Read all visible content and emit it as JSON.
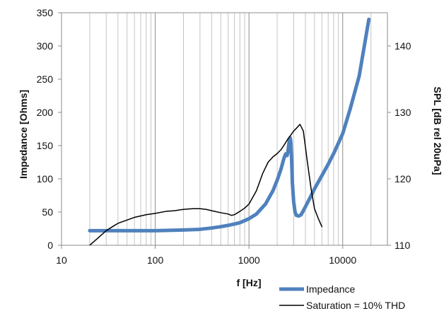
{
  "chart_data": {
    "type": "line",
    "xlabel": "f [Hz]",
    "ylabel": "Impedance [Ohms]",
    "y2label": "SPL [dB rel 20uPa]",
    "x_scale": "log",
    "xlim": [
      10,
      30000
    ],
    "ylim": [
      0,
      350
    ],
    "y2lim": [
      110,
      145
    ],
    "x_ticks": [
      10,
      100,
      1000,
      10000
    ],
    "y_ticks": [
      0,
      50,
      100,
      150,
      200,
      250,
      300,
      350
    ],
    "y2_ticks": [
      110,
      120,
      130,
      140
    ],
    "grid": {
      "x_major": true,
      "x_minor": true,
      "y": false
    },
    "legend_position": "bottom-right",
    "series": [
      {
        "name": "Impedance",
        "axis": "left",
        "color": "#4F81BD",
        "x": [
          20,
          30,
          50,
          100,
          200,
          300,
          400,
          500,
          600,
          700,
          800,
          1000,
          1200,
          1500,
          1800,
          2000,
          2200,
          2350,
          2450,
          2500,
          2550,
          2600,
          2650,
          2700,
          2750,
          2800,
          2850,
          2900,
          3000,
          3100,
          3200,
          3400,
          3600,
          3800,
          4000,
          4500,
          5000,
          6000,
          7000,
          8000,
          10000,
          12000,
          15000,
          19000
        ],
        "y": [
          22,
          22,
          22,
          22,
          23,
          24,
          26,
          28,
          30,
          32,
          34,
          40,
          47,
          62,
          82,
          98,
          115,
          130,
          137,
          138,
          135,
          140,
          150,
          158,
          162,
          155,
          130,
          95,
          65,
          50,
          45,
          44,
          46,
          52,
          58,
          72,
          85,
          105,
          122,
          138,
          168,
          205,
          255,
          340
        ]
      },
      {
        "name": "Saturation = 10% THD",
        "axis": "right",
        "color": "#000000",
        "x": [
          20,
          25,
          30,
          35,
          40,
          50,
          60,
          80,
          100,
          130,
          160,
          200,
          250,
          300,
          350,
          400,
          500,
          600,
          650,
          700,
          800,
          900,
          1000,
          1200,
          1400,
          1600,
          1800,
          2000,
          2200,
          2400,
          2600,
          2800,
          3000,
          3200,
          3500,
          3800,
          4200,
          4600,
          5000,
          5500,
          6000
        ],
        "y": [
          110,
          111.2,
          112.2,
          112.8,
          113.3,
          113.8,
          114.2,
          114.6,
          114.8,
          115.1,
          115.2,
          115.4,
          115.5,
          115.5,
          115.4,
          115.2,
          114.9,
          114.7,
          114.5,
          114.6,
          115.1,
          115.6,
          116.2,
          118.2,
          120.8,
          122.5,
          123.3,
          123.8,
          124.4,
          125.2,
          126,
          126.6,
          127.2,
          127.6,
          128.2,
          127.2,
          122.5,
          118.5,
          115.5,
          114,
          112.8
        ]
      }
    ]
  }
}
